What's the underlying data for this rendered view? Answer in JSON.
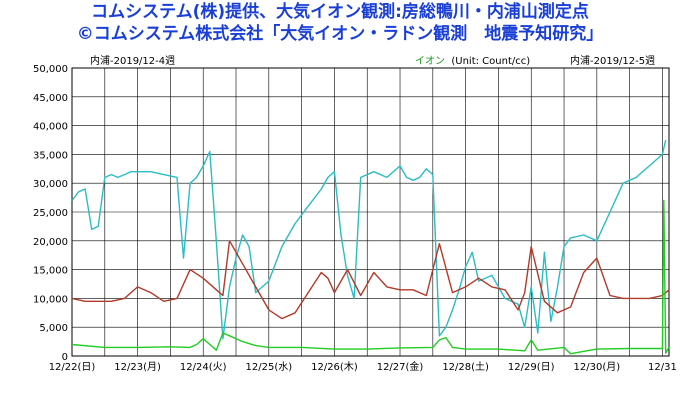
{
  "title_line1": "コムシステム(株)提供、大気イオン観測:房総鴨川・内浦山測定点",
  "title_line2": "©コムシステム株式会社「大気イオン・ラドン観測　地震予知研究」",
  "header_left": "内浦-2019/12-4週",
  "header_ion": "イオン",
  "header_unit": "(Unit: Count/cc)",
  "header_right": "内浦-2019/12-5週",
  "chart_data": {
    "type": "line",
    "ylim": [
      0,
      50000
    ],
    "xlim": [
      0,
      9.1
    ],
    "yticks": [
      0,
      5000,
      10000,
      15000,
      20000,
      25000,
      30000,
      35000,
      40000,
      45000,
      50000
    ],
    "ytick_labels": [
      "0",
      "5,000",
      "10,000",
      "15,000",
      "20,000",
      "25,000",
      "30,000",
      "35,000",
      "40,000",
      "45,000",
      "50,000"
    ],
    "xticks": [
      0,
      1,
      2,
      3,
      4,
      5,
      6,
      7,
      8,
      9
    ],
    "xtick_labels": [
      "12/22(日)",
      "12/23(月)",
      "12/24(火)",
      "12/25(水)",
      "12/26(木)",
      "12/27(金)",
      "12/28(土)",
      "12/29(日)",
      "12/30(月)",
      "12/31"
    ],
    "grid": true,
    "series": [
      {
        "color": "#2bbcc4",
        "x": [
          0,
          0.1,
          0.2,
          0.3,
          0.4,
          0.5,
          0.6,
          0.7,
          0.8,
          0.9,
          1.0,
          1.2,
          1.4,
          1.6,
          1.7,
          1.8,
          1.9,
          2.0,
          2.1,
          2.2,
          2.3,
          2.4,
          2.5,
          2.6,
          2.7,
          2.8,
          3.0,
          3.2,
          3.4,
          3.6,
          3.8,
          3.9,
          4.0,
          4.1,
          4.2,
          4.3,
          4.4,
          4.6,
          4.8,
          5.0,
          5.1,
          5.2,
          5.3,
          5.4,
          5.5,
          5.6,
          5.7,
          5.8,
          5.9,
          6.0,
          6.1,
          6.2,
          6.4,
          6.6,
          6.8,
          6.9,
          7.0,
          7.1,
          7.2,
          7.3,
          7.4,
          7.5,
          7.6,
          7.8,
          8.0,
          8.2,
          8.4,
          8.6,
          8.8,
          9.0,
          9.05
        ],
        "values": [
          27000,
          28500,
          29000,
          22000,
          22500,
          31000,
          31500,
          31000,
          31500,
          32000,
          32000,
          32000,
          31500,
          31000,
          17000,
          30000,
          31000,
          33000,
          35500,
          20000,
          3000,
          12000,
          17000,
          21000,
          19000,
          11000,
          13000,
          19000,
          23000,
          26000,
          29000,
          31000,
          32000,
          21000,
          14000,
          10000,
          31000,
          32000,
          31000,
          33000,
          31000,
          30500,
          31000,
          32500,
          31500,
          3500,
          5000,
          8000,
          11500,
          15500,
          18000,
          13000,
          14000,
          10000,
          9000,
          5000,
          12000,
          4000,
          18000,
          6000,
          12000,
          19000,
          20500,
          21000,
          20000,
          25000,
          30000,
          31000,
          33000,
          35000,
          37500
        ]
      },
      {
        "color": "#b23a2a",
        "x": [
          0,
          0.2,
          0.4,
          0.6,
          0.8,
          1.0,
          1.2,
          1.4,
          1.6,
          1.8,
          2.0,
          2.2,
          2.3,
          2.4,
          2.6,
          2.8,
          3.0,
          3.2,
          3.4,
          3.6,
          3.8,
          3.9,
          4.0,
          4.2,
          4.4,
          4.6,
          4.8,
          5.0,
          5.2,
          5.4,
          5.6,
          5.8,
          6.0,
          6.2,
          6.4,
          6.6,
          6.8,
          6.9,
          7.0,
          7.2,
          7.4,
          7.5,
          7.6,
          7.8,
          8.0,
          8.2,
          8.4,
          8.6,
          8.8,
          9.0,
          9.1
        ],
        "values": [
          10000,
          9500,
          9500,
          9500,
          10000,
          12000,
          11000,
          9500,
          10000,
          15000,
          13500,
          11500,
          10500,
          20000,
          16000,
          12000,
          8000,
          6500,
          7500,
          11000,
          14500,
          13500,
          11000,
          15000,
          10500,
          14500,
          12000,
          11500,
          11500,
          10500,
          19500,
          11000,
          12000,
          13500,
          12000,
          11500,
          8000,
          11000,
          19000,
          9500,
          7500,
          8000,
          8500,
          14500,
          17000,
          10500,
          10000,
          10000,
          10000,
          10500,
          11500
        ]
      },
      {
        "color": "#22cc22",
        "x": [
          0,
          0.5,
          1.0,
          1.5,
          1.8,
          1.9,
          2.0,
          2.1,
          2.2,
          2.3,
          2.4,
          2.6,
          2.8,
          3.0,
          3.5,
          4.0,
          4.5,
          5.0,
          5.5,
          5.6,
          5.7,
          5.8,
          6.0,
          6.5,
          6.9,
          7.0,
          7.1,
          7.5,
          7.6,
          8.0,
          8.5,
          9.0,
          9.02,
          9.05,
          9.1
        ],
        "values": [
          2000,
          1500,
          1500,
          1600,
          1500,
          2000,
          3000,
          2000,
          1000,
          4000,
          3500,
          2500,
          1800,
          1500,
          1500,
          1200,
          1200,
          1400,
          1500,
          2800,
          3200,
          1500,
          1200,
          1200,
          900,
          2800,
          1000,
          1500,
          400,
          1200,
          1300,
          1300,
          27000,
          500,
          1500
        ]
      }
    ]
  }
}
